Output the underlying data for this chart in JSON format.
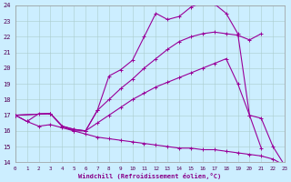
{
  "background_color": "#cceeff",
  "grid_color": "#aacccc",
  "line_color": "#990099",
  "linewidth": 0.8,
  "markersize": 2.5,
  "xlim": [
    0,
    23
  ],
  "ylim": [
    14,
    24
  ],
  "xlabel": "Windchill (Refroidissement éolien,°C)",
  "xticks": [
    0,
    1,
    2,
    3,
    4,
    5,
    6,
    7,
    8,
    9,
    10,
    11,
    12,
    13,
    14,
    15,
    16,
    17,
    18,
    19,
    20,
    21,
    22,
    23
  ],
  "yticks": [
    14,
    15,
    16,
    17,
    18,
    19,
    20,
    21,
    22,
    23,
    24
  ],
  "series1_x": [
    0,
    1,
    2,
    3,
    4,
    5,
    6,
    7,
    8,
    9,
    10,
    11,
    12,
    13,
    14,
    15,
    16,
    17,
    18,
    19,
    20,
    21
  ],
  "series1_y": [
    17.0,
    16.6,
    17.1,
    17.1,
    16.3,
    16.0,
    16.0,
    17.3,
    19.5,
    19.9,
    20.5,
    22.0,
    23.5,
    23.1,
    23.3,
    23.9,
    24.2,
    24.1,
    23.5,
    22.2,
    17.0,
    14.9
  ],
  "series2_x": [
    0,
    3,
    4,
    5,
    6,
    7,
    8,
    9,
    10,
    11,
    12,
    13,
    14,
    15,
    16,
    17,
    18,
    19,
    20,
    21
  ],
  "series2_y": [
    17.0,
    17.1,
    16.3,
    16.1,
    16.0,
    17.3,
    18.0,
    18.7,
    19.3,
    20.0,
    20.6,
    21.2,
    21.7,
    22.0,
    22.2,
    22.3,
    22.2,
    22.1,
    21.8,
    22.2
  ],
  "series3_x": [
    0,
    3,
    4,
    5,
    6,
    7,
    8,
    9,
    10,
    11,
    12,
    13,
    14,
    15,
    16,
    17,
    18,
    19,
    20,
    21,
    22,
    23
  ],
  "series3_y": [
    17.0,
    17.1,
    16.3,
    16.1,
    16.0,
    16.5,
    17.0,
    17.5,
    18.0,
    18.4,
    18.8,
    19.1,
    19.4,
    19.7,
    20.0,
    20.3,
    20.6,
    19.0,
    17.0,
    16.8,
    15.0,
    13.8
  ],
  "series4_x": [
    0,
    1,
    2,
    3,
    4,
    5,
    6,
    7,
    8,
    9,
    10,
    11,
    12,
    13,
    14,
    15,
    16,
    17,
    18,
    19,
    20,
    21,
    22,
    23
  ],
  "series4_y": [
    17.0,
    16.6,
    16.3,
    16.4,
    16.2,
    16.0,
    15.8,
    15.6,
    15.5,
    15.4,
    15.3,
    15.2,
    15.1,
    15.0,
    14.9,
    14.9,
    14.8,
    14.8,
    14.7,
    14.6,
    14.5,
    14.4,
    14.2,
    13.8
  ]
}
